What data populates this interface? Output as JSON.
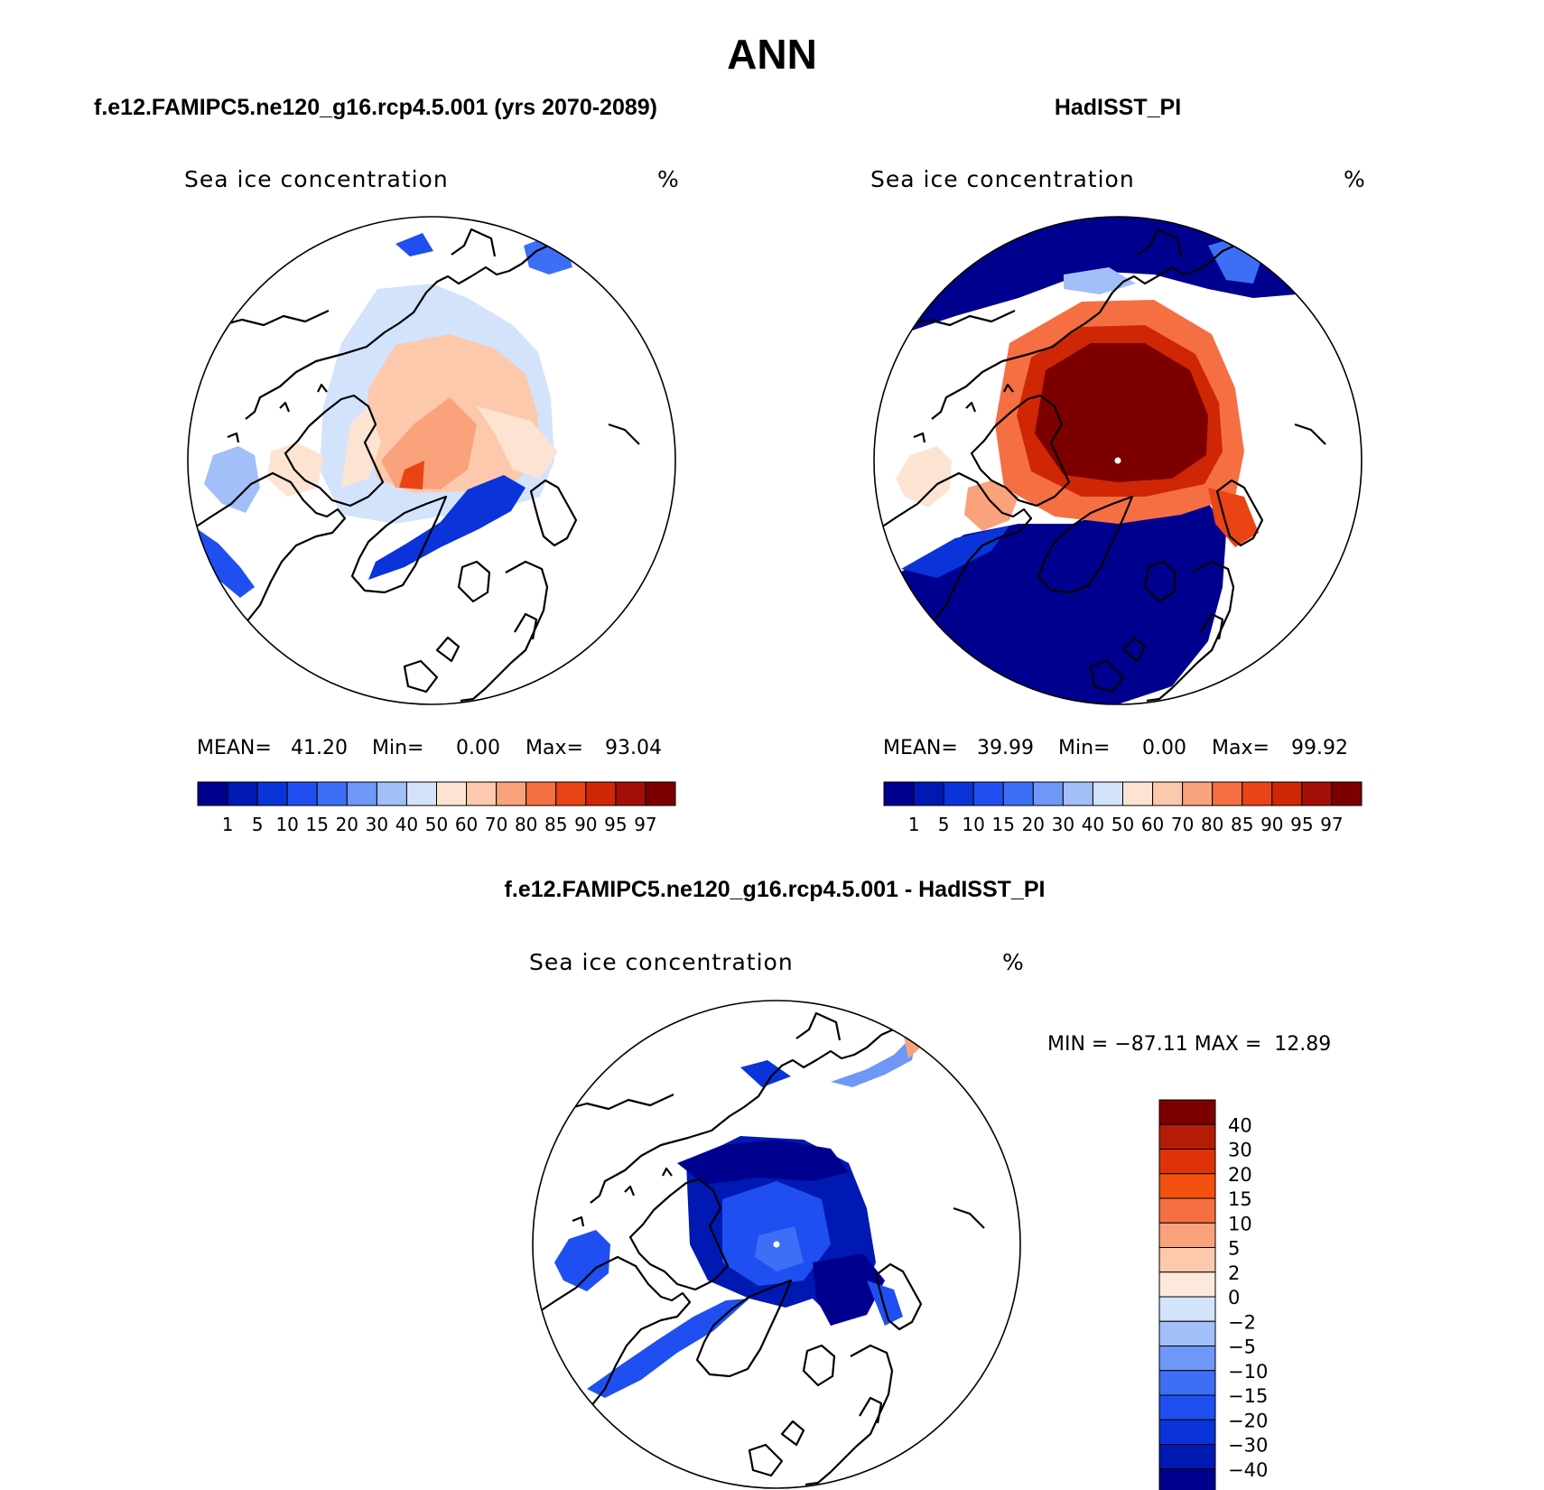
{
  "figure": {
    "title": "ANN",
    "variable": "Sea ice concentration",
    "units": "%"
  },
  "panels": {
    "model": {
      "case": "f.e12.FAMIPC5.ne120_g16.rcp4.5.001 (yrs 2070-2089)",
      "mean_label": "MEAN=",
      "mean_value": "41.20",
      "min_label": "Min=",
      "min_value": "0.00",
      "max_label": "Max=",
      "max_value": "93.04"
    },
    "obs": {
      "case": "HadISST_PI",
      "mean_label": "MEAN=",
      "mean_value": "39.99",
      "min_label": "Min=",
      "min_value": "0.00",
      "max_label": "Max=",
      "max_value": "99.92"
    },
    "diff": {
      "case": "f.e12.FAMIPC5.ne120_g16.rcp4.5.001 - HadISST_PI",
      "minmax": "MIN = −87.11 MAX =  12.89"
    }
  },
  "abs_colorbar": {
    "levels": [
      "1",
      "5",
      "10",
      "15",
      "20",
      "30",
      "40",
      "50",
      "60",
      "70",
      "80",
      "85",
      "90",
      "95",
      "97"
    ],
    "colors": [
      "#00008f",
      "#0019b3",
      "#0a33d9",
      "#1f4ff0",
      "#3c6ff5",
      "#6e97f7",
      "#a3bff9",
      "#d3e3fb",
      "#fde4d2",
      "#fcc9ad",
      "#f9a27c",
      "#f56f43",
      "#ea4416",
      "#cf2606",
      "#a30f06",
      "#7d0000"
    ]
  },
  "diff_colorbar": {
    "levels": [
      "40",
      "30",
      "20",
      "15",
      "10",
      "5",
      "2",
      "0",
      "−2",
      "−5",
      "−10",
      "−15",
      "−20",
      "−30",
      "−40"
    ],
    "colors": [
      "#7d0000",
      "#b51c05",
      "#e03209",
      "#f2510f",
      "#f56f43",
      "#f9a27c",
      "#fcc9ad",
      "#fde9db",
      "#d3e3fb",
      "#a3bff9",
      "#6e97f7",
      "#3c6ff5",
      "#1f4ff0",
      "#0a33d9",
      "#0019b3",
      "#00008f"
    ]
  },
  "map_colors": {
    "deep_blue": "#00008f",
    "dark_red": "#7d0000"
  }
}
